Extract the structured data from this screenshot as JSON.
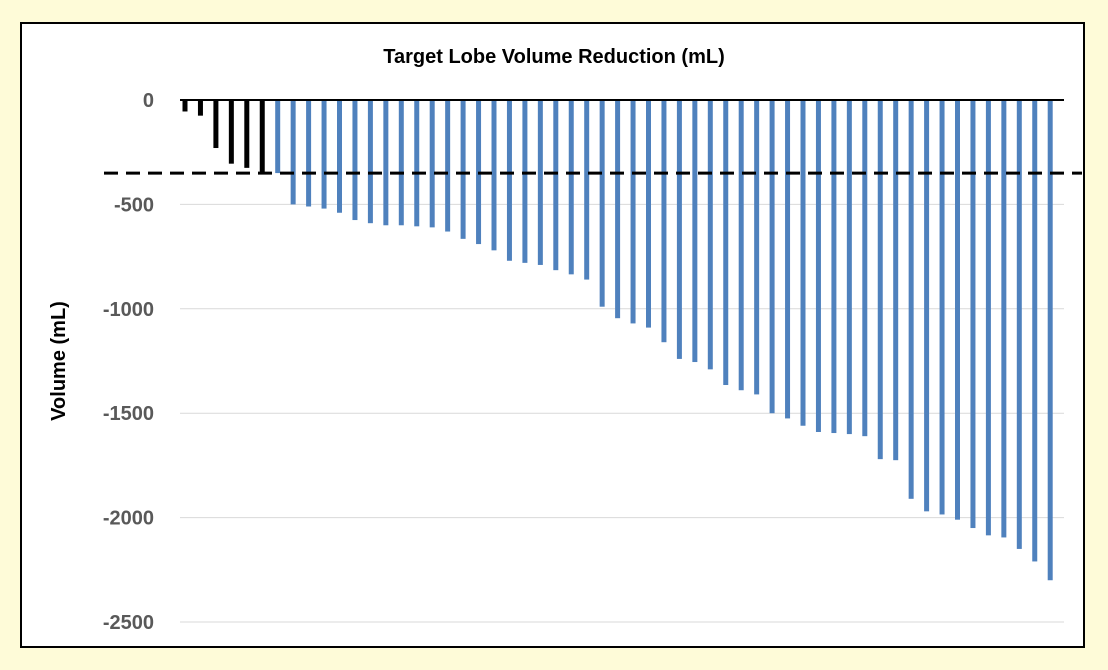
{
  "chart_data": {
    "type": "bar",
    "title": "Target Lobe Volume Reduction (mL)",
    "xlabel": "",
    "ylabel": "Volume (mL)",
    "ylim": [
      -2500,
      0
    ],
    "yticks": [
      0,
      -500,
      -1000,
      -1500,
      -2000,
      -2500
    ],
    "grid": true,
    "threshold": -350,
    "threshold_style": "dashed",
    "colors": {
      "below_threshold": "#000000",
      "above_threshold": "#4f81bd",
      "grid": "#d9d9d9",
      "axis": "#000000"
    },
    "series": [
      {
        "values": [
          -55,
          -75,
          -230,
          -305,
          -325,
          -345,
          -350,
          -500,
          -510,
          -520,
          -540,
          -575,
          -590,
          -600,
          -600,
          -605,
          -610,
          -630,
          -665,
          -690,
          -720,
          -770,
          -780,
          -790,
          -815,
          -835,
          -860,
          -990,
          -1045,
          -1070,
          -1090,
          -1160,
          -1240,
          -1255,
          -1290,
          -1365,
          -1390,
          -1410,
          -1500,
          -1525,
          -1560,
          -1590,
          -1595,
          -1600,
          -1610,
          -1720,
          -1725,
          -1910,
          -1970,
          -1985,
          -2010,
          -2050,
          -2085,
          -2095,
          -2150,
          -2210,
          -2300
        ]
      }
    ]
  }
}
